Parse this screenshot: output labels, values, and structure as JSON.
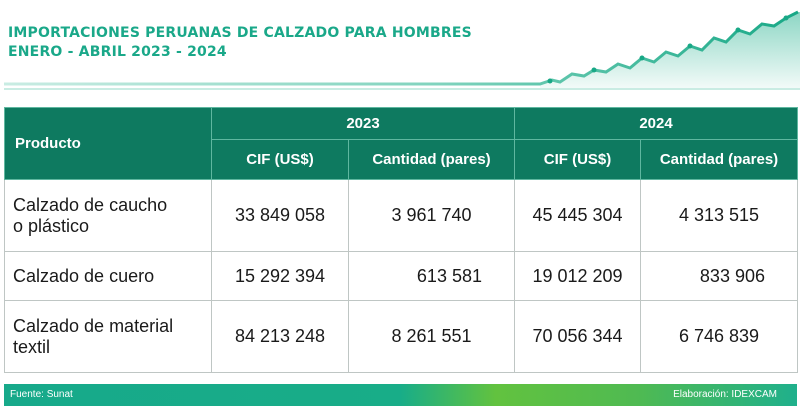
{
  "header": {
    "title_line1": "IMPORTACIONES PERUANAS DE CALZADO PARA HOMBRES",
    "title_line2": "ENERO - ABRIL 2023 - 2024",
    "accent_color": "#1aa889"
  },
  "table": {
    "product_header": "Producto",
    "year_2023": "2023",
    "year_2024": "2024",
    "col_cif": "CIF (US$)",
    "col_qty": "Cantidad (pares)",
    "header_color": "#0e7a60",
    "rows": [
      {
        "line1": "Calzado de caucho",
        "line2": "o plástico",
        "cif_2023": "33 849 058",
        "qty_2023": "3 961 740",
        "cif_2024": "45 445 304",
        "qty_2024": "4 313 515"
      },
      {
        "line1": "Calzado de cuero",
        "line2": "",
        "cif_2023": "15 292 394",
        "qty_2023": "613 581",
        "cif_2024": "19 012 209",
        "qty_2024": "833 906"
      },
      {
        "line1": "Calzado de material",
        "line2": "textil",
        "cif_2023": "84 213 248",
        "qty_2023": "8 261 551",
        "cif_2024": "70 056 344",
        "qty_2024": "6 746 839"
      }
    ]
  },
  "footer": {
    "source": "Fuente: Sunat",
    "credit": "Elaboración:  IDEXCAM"
  }
}
